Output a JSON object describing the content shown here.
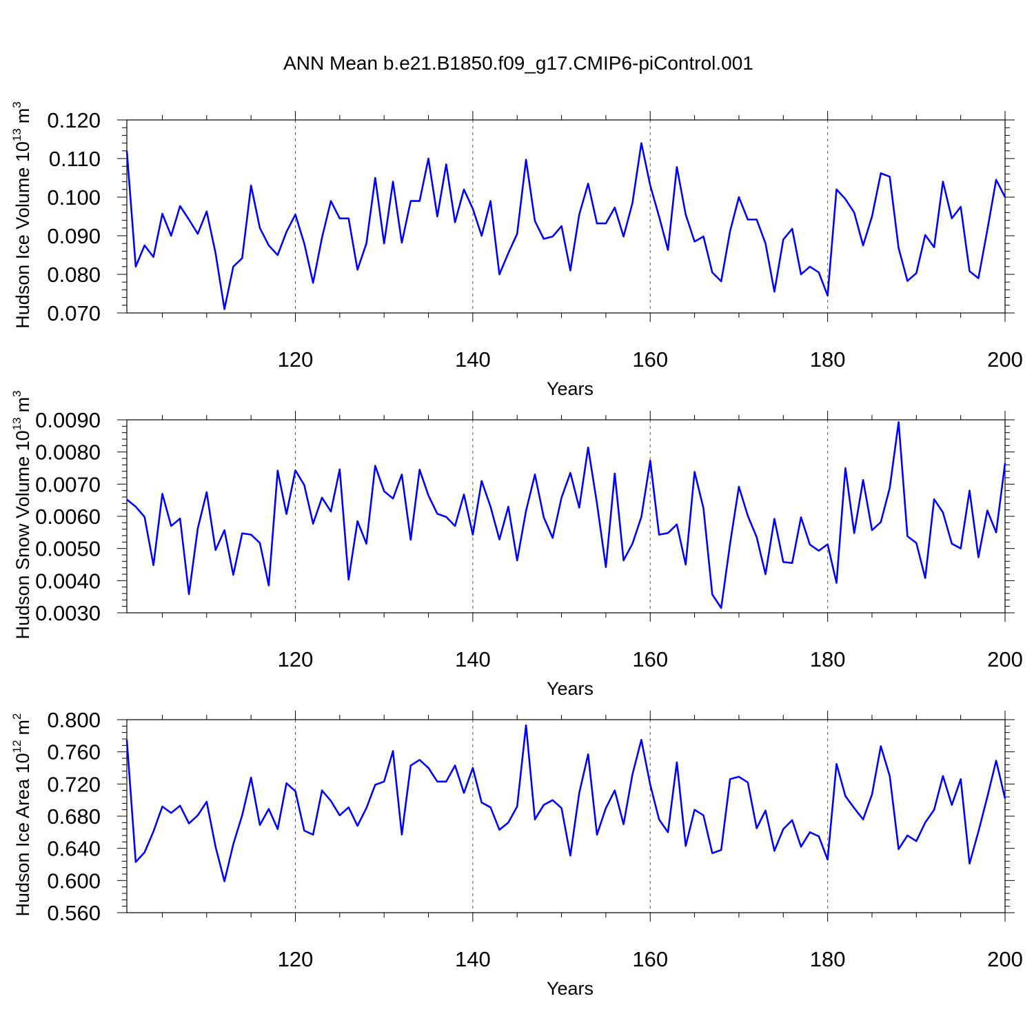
{
  "figure": {
    "title": "ANN Mean b.e21.B1850.f09_g17.CMIP6-piControl.001"
  },
  "chart_data": [
    {
      "type": "line",
      "xlabel": "Years",
      "ylabel": "Hudson Ice Volume 10",
      "ylabel_sup": "13",
      "ylabel_unit": "m",
      "ylabel_unit_sup": "3",
      "xlim": [
        101,
        200
      ],
      "ylim": [
        0.07,
        0.12
      ],
      "xticks": [
        120,
        140,
        160,
        180,
        200
      ],
      "yticks": [
        0.07,
        0.08,
        0.09,
        0.1,
        0.11,
        0.12
      ],
      "ytick_labels": [
        "0.070",
        "0.080",
        "0.090",
        "0.100",
        "0.110",
        "0.120"
      ],
      "grid": "x-dashed",
      "color": "#0000ff",
      "x_start": 101,
      "values": [
        0.112,
        0.082,
        0.0875,
        0.0845,
        0.0957,
        0.09,
        0.0977,
        0.0942,
        0.0905,
        0.0963,
        0.0855,
        0.071,
        0.082,
        0.0842,
        0.103,
        0.092,
        0.0875,
        0.085,
        0.091,
        0.0955,
        0.088,
        0.0778,
        0.0895,
        0.099,
        0.0945,
        0.0945,
        0.0812,
        0.088,
        0.105,
        0.088,
        0.104,
        0.0882,
        0.099,
        0.099,
        0.11,
        0.095,
        0.1085,
        0.0935,
        0.102,
        0.097,
        0.09,
        0.099,
        0.08,
        0.0855,
        0.0905,
        0.1097,
        0.0938,
        0.0892,
        0.0898,
        0.0925,
        0.081,
        0.0955,
        0.1035,
        0.0932,
        0.0932,
        0.0973,
        0.0898,
        0.0985,
        0.114,
        0.103,
        0.095,
        0.0863,
        0.1078,
        0.0955,
        0.0885,
        0.0898,
        0.0805,
        0.0782,
        0.0912,
        0.1,
        0.0942,
        0.0942,
        0.088,
        0.0755,
        0.089,
        0.0918,
        0.08,
        0.082,
        0.0805,
        0.0745,
        0.102,
        0.0995,
        0.096,
        0.0875,
        0.095,
        0.1062,
        0.1053,
        0.0868,
        0.0783,
        0.0803,
        0.0902,
        0.087,
        0.104,
        0.0945,
        0.0975,
        0.0808,
        0.079,
        0.0915,
        0.1045,
        0.1
      ]
    },
    {
      "type": "line",
      "xlabel": "Years",
      "ylabel": "Hudson Snow Volume 10",
      "ylabel_sup": "13",
      "ylabel_unit": "m",
      "ylabel_unit_sup": "3",
      "xlim": [
        101,
        200
      ],
      "ylim": [
        0.003,
        0.009
      ],
      "xticks": [
        120,
        140,
        160,
        180,
        200
      ],
      "yticks": [
        0.003,
        0.004,
        0.005,
        0.006,
        0.007,
        0.008,
        0.009
      ],
      "ytick_labels": [
        "0.0030",
        "0.0040",
        "0.0050",
        "0.0060",
        "0.0070",
        "0.0080",
        "0.0090"
      ],
      "grid": "x-dashed",
      "color": "#0000ff",
      "x_start": 101,
      "values": [
        0.00652,
        0.0063,
        0.00598,
        0.00448,
        0.0067,
        0.0057,
        0.00593,
        0.00358,
        0.00562,
        0.00675,
        0.00495,
        0.00557,
        0.00418,
        0.00547,
        0.00543,
        0.00517,
        0.00385,
        0.00742,
        0.00607,
        0.00743,
        0.00697,
        0.00577,
        0.00658,
        0.00615,
        0.00746,
        0.00403,
        0.00585,
        0.00515,
        0.00757,
        0.00678,
        0.00655,
        0.0073,
        0.00527,
        0.00745,
        0.00665,
        0.00608,
        0.00598,
        0.0057,
        0.00668,
        0.00543,
        0.0071,
        0.0063,
        0.00528,
        0.0063,
        0.00463,
        0.00617,
        0.0073,
        0.00597,
        0.00533,
        0.00658,
        0.00735,
        0.00627,
        0.00814,
        0.0064,
        0.00442,
        0.00733,
        0.00463,
        0.00515,
        0.00598,
        0.00773,
        0.00543,
        0.00548,
        0.00575,
        0.0045,
        0.00738,
        0.00625,
        0.00357,
        0.00315,
        0.00515,
        0.00692,
        0.00602,
        0.00535,
        0.0042,
        0.00592,
        0.00458,
        0.00455,
        0.00597,
        0.00512,
        0.00493,
        0.00513,
        0.00393,
        0.0075,
        0.00548,
        0.00713,
        0.00557,
        0.00582,
        0.00688,
        0.00893,
        0.00538,
        0.00517,
        0.00408,
        0.00653,
        0.00612,
        0.00515,
        0.005,
        0.0068,
        0.00473,
        0.00618,
        0.0055,
        0.00765
      ]
    },
    {
      "type": "line",
      "xlabel": "Years",
      "ylabel": "Hudson Ice Area 10",
      "ylabel_sup": "12",
      "ylabel_unit": "m",
      "ylabel_unit_sup": "2",
      "xlim": [
        101,
        200
      ],
      "ylim": [
        0.56,
        0.8
      ],
      "xticks": [
        120,
        140,
        160,
        180,
        200
      ],
      "yticks": [
        0.56,
        0.6,
        0.64,
        0.68,
        0.72,
        0.76,
        0.8
      ],
      "ytick_labels": [
        "0.560",
        "0.600",
        "0.640",
        "0.680",
        "0.720",
        "0.760",
        "0.800"
      ],
      "grid": "x-dashed",
      "color": "#0000ff",
      "x_start": 101,
      "values": [
        0.775,
        0.623,
        0.635,
        0.661,
        0.692,
        0.684,
        0.693,
        0.671,
        0.681,
        0.698,
        0.642,
        0.599,
        0.645,
        0.681,
        0.728,
        0.669,
        0.689,
        0.664,
        0.721,
        0.711,
        0.662,
        0.657,
        0.712,
        0.699,
        0.681,
        0.691,
        0.668,
        0.69,
        0.719,
        0.723,
        0.761,
        0.657,
        0.743,
        0.75,
        0.74,
        0.723,
        0.723,
        0.743,
        0.709,
        0.74,
        0.697,
        0.691,
        0.663,
        0.672,
        0.692,
        0.793,
        0.676,
        0.694,
        0.7,
        0.69,
        0.631,
        0.709,
        0.757,
        0.657,
        0.69,
        0.712,
        0.67,
        0.732,
        0.775,
        0.719,
        0.676,
        0.66,
        0.747,
        0.643,
        0.688,
        0.681,
        0.634,
        0.638,
        0.726,
        0.729,
        0.722,
        0.665,
        0.687,
        0.637,
        0.664,
        0.675,
        0.642,
        0.66,
        0.655,
        0.626,
        0.745,
        0.705,
        0.69,
        0.676,
        0.707,
        0.767,
        0.73,
        0.639,
        0.656,
        0.649,
        0.672,
        0.688,
        0.73,
        0.694,
        0.726,
        0.621,
        0.661,
        0.704,
        0.749,
        0.702
      ]
    }
  ]
}
